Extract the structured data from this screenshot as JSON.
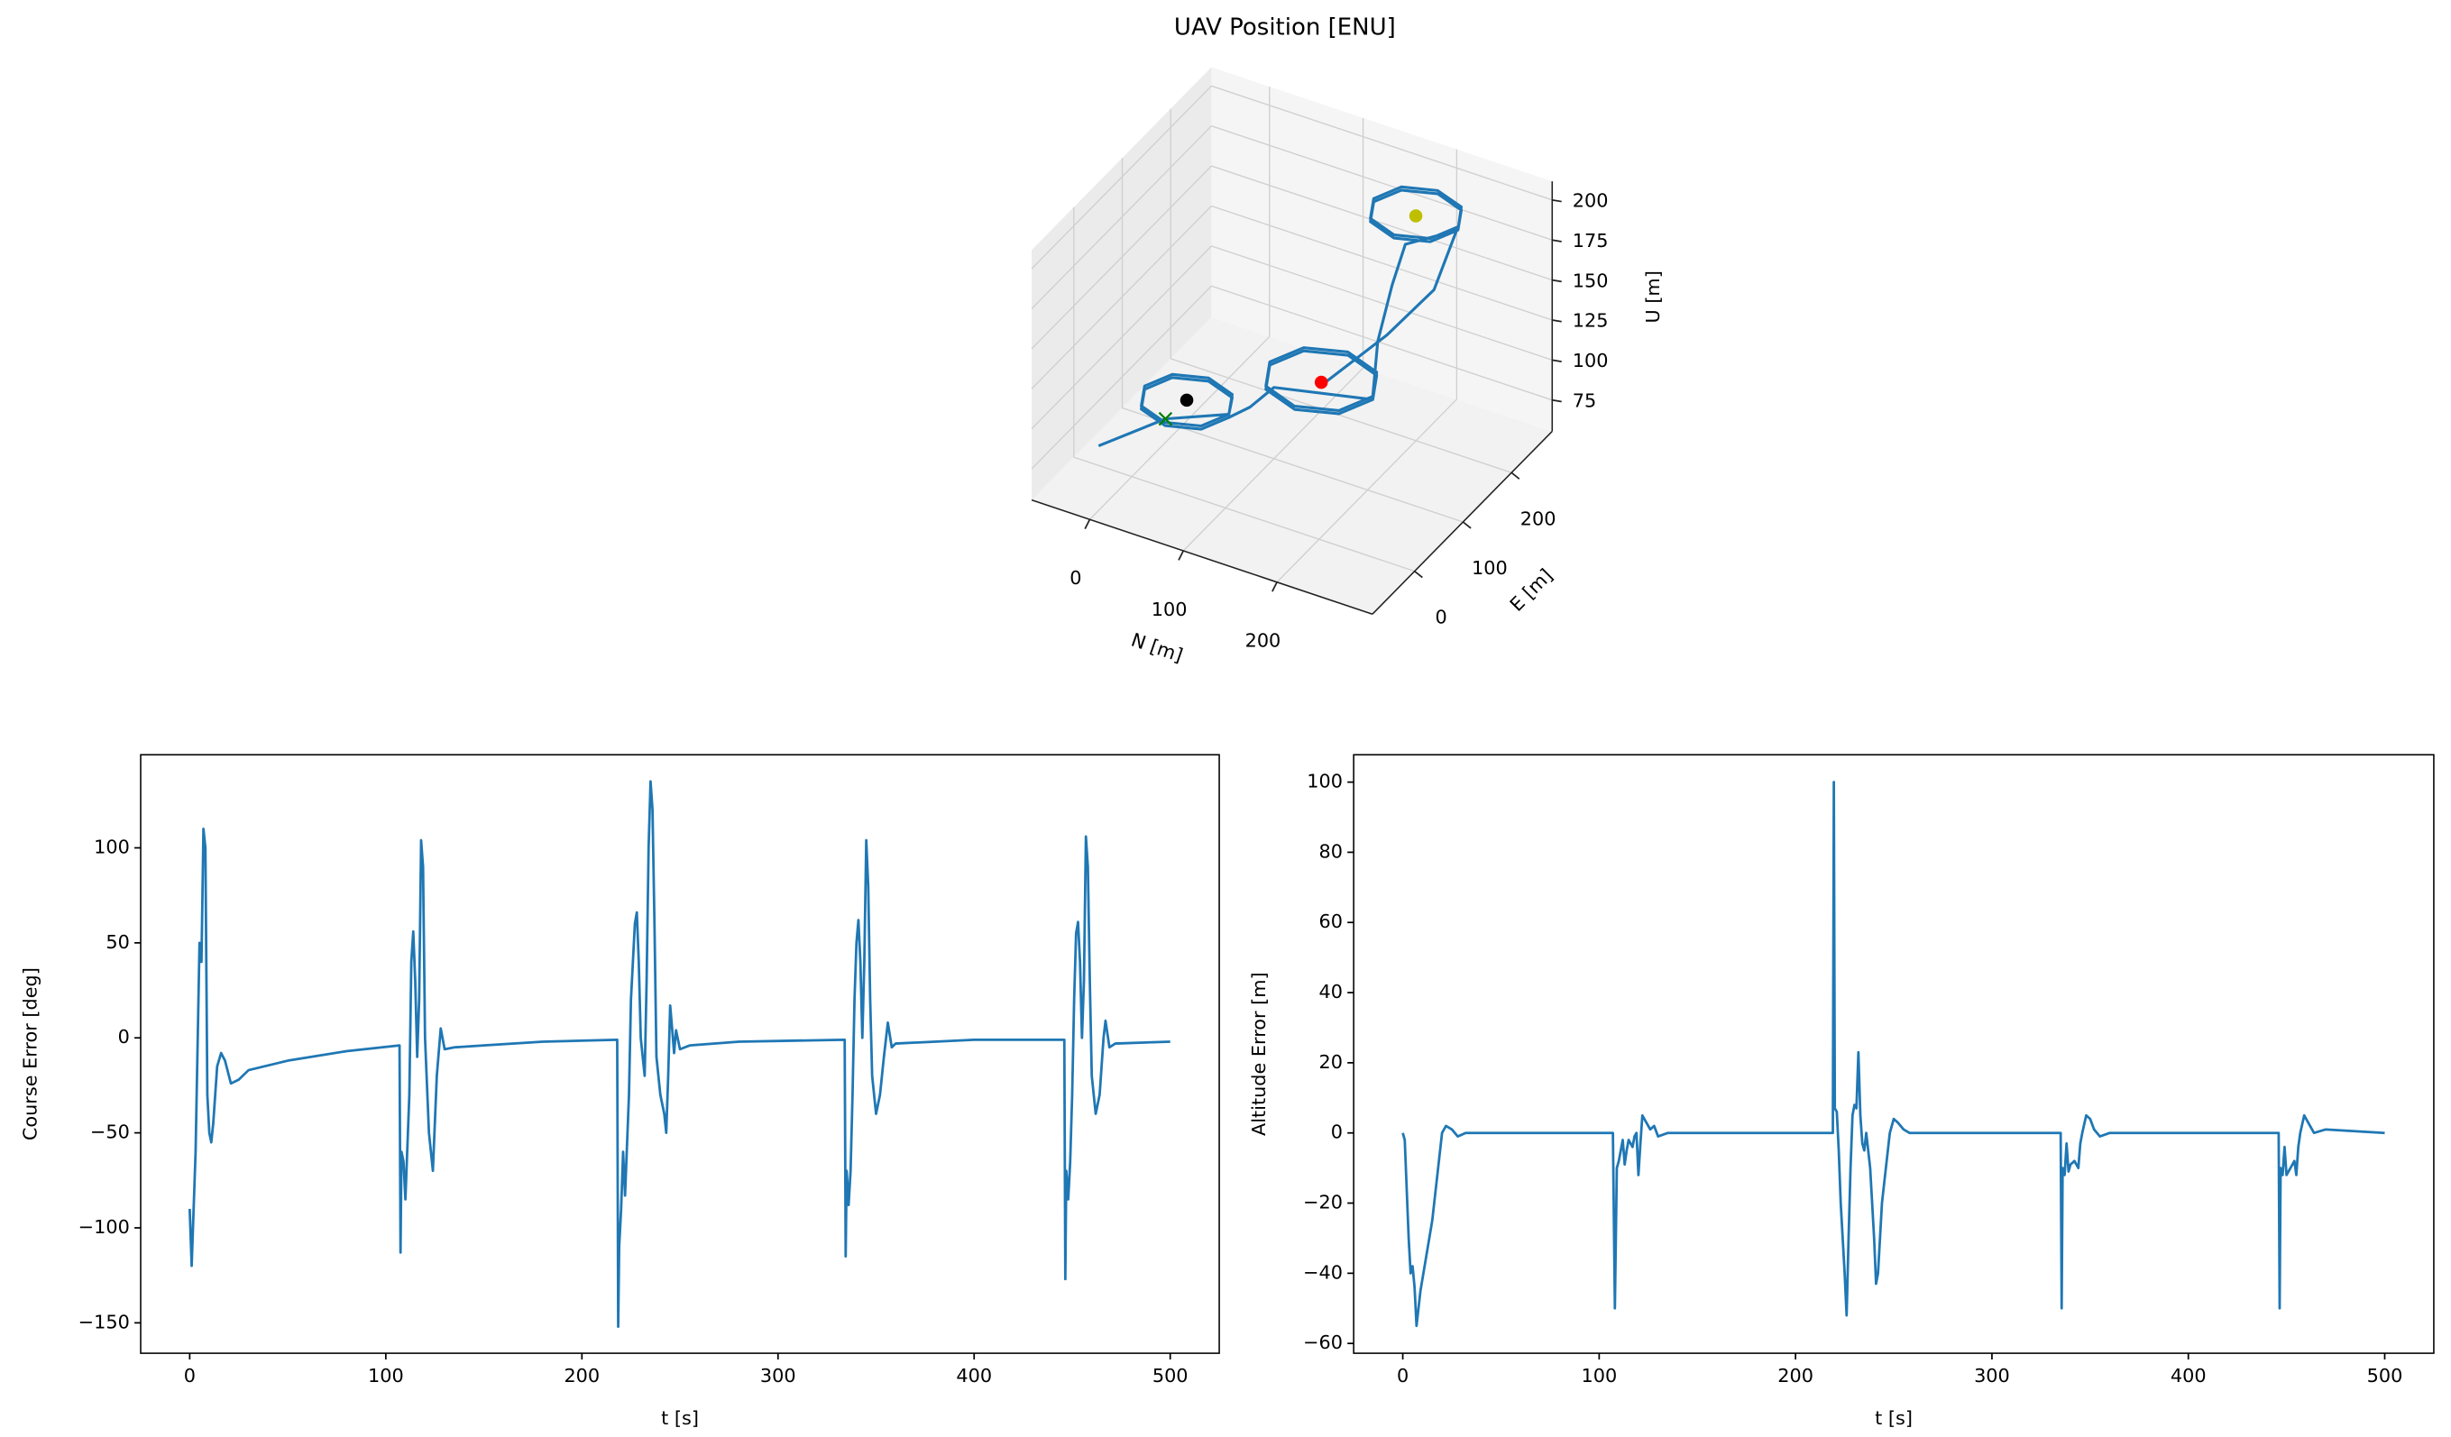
{
  "chart_data": [
    {
      "type": "line3d",
      "title": "UAV Position [ENU]",
      "xlabel": "N [m]",
      "ylabel": "E [m]",
      "zlabel": "U [m]",
      "xlim": [
        -62,
        302
      ],
      "ylim": [
        -87,
        284
      ],
      "zlim": [
        55.5,
        211.7
      ],
      "xticks": [
        0,
        100,
        200
      ],
      "yticks": [
        0,
        100,
        200
      ],
      "zticks": [
        75,
        100,
        125,
        150,
        175,
        200
      ],
      "series": [
        {
          "color": "#1f77b4",
          "x": [
            -20,
            25,
            85,
            72,
            40,
            8,
            -5,
            8,
            40,
            72,
            85,
            72,
            40,
            8,
            -5,
            8,
            40,
            72,
            85,
            90,
            100,
            189,
            173,
            134,
            95,
            79,
            95,
            134,
            173,
            189,
            173,
            134,
            95,
            79,
            95,
            134,
            173,
            189,
            185,
            190,
            200,
            250,
            237,
            205,
            173,
            160,
            173,
            205,
            237,
            250,
            237,
            205,
            173,
            160,
            173,
            205,
            237,
            250,
            240,
            200,
            150
          ],
          "y": [
            -30,
            21,
            36,
            68,
            81,
            68,
            36,
            4,
            -9,
            4,
            36,
            68,
            81,
            68,
            36,
            4,
            -9,
            4,
            36,
            70,
            100,
            132,
            171,
            187,
            171,
            132,
            93,
            77,
            93,
            132,
            171,
            187,
            171,
            132,
            93,
            77,
            93,
            132,
            150,
            170,
            178,
            190,
            222,
            235,
            222,
            190,
            158,
            145,
            158,
            190,
            222,
            235,
            222,
            190,
            158,
            145,
            158,
            190,
            160,
            140,
            110
          ],
          "z": [
            80,
            90,
            100,
            100,
            100,
            100,
            100,
            100,
            100,
            100,
            100,
            98,
            98,
            98,
            98,
            98,
            98,
            98,
            98,
            95,
            100,
            100,
            100,
            100,
            100,
            100,
            100,
            100,
            100,
            100,
            102,
            102,
            102,
            102,
            102,
            102,
            102,
            102,
            130,
            160,
            185,
            200,
            200,
            200,
            200,
            200,
            200,
            200,
            200,
            200,
            202,
            202,
            202,
            202,
            202,
            202,
            202,
            202,
            170,
            140,
            110
          ]
        }
      ],
      "markers": [
        {
          "marker": "x",
          "color": "#008000",
          "x": 25,
          "y": 21,
          "z": 90
        },
        {
          "marker": "o",
          "color": "#000000",
          "x": 40,
          "y": 36,
          "z": 100
        },
        {
          "marker": "o",
          "color": "#ff0000",
          "x": 134,
          "y": 132,
          "z": 100
        },
        {
          "marker": "o",
          "color": "#bfbf00",
          "x": 205,
          "y": 190,
          "z": 200
        }
      ]
    },
    {
      "type": "line",
      "xlabel": "t [s]",
      "ylabel": "Course Error [deg]",
      "xlim": [
        -25,
        525
      ],
      "ylim": [
        -166,
        149
      ],
      "xticks": [
        0,
        100,
        200,
        300,
        400,
        500
      ],
      "yticks": [
        {
          "value": -150,
          "label": "−150"
        },
        {
          "value": -100,
          "label": "−100"
        },
        {
          "value": -50,
          "label": "−50"
        },
        0,
        50,
        100
      ],
      "x": [
        0,
        1,
        3,
        5,
        6,
        7,
        8,
        9,
        10,
        11,
        12,
        14,
        16,
        18,
        21,
        25,
        30,
        50,
        80,
        107,
        107.5,
        108,
        109,
        110,
        112,
        113,
        114,
        115,
        116,
        117,
        118,
        119,
        120,
        122,
        124,
        126,
        128,
        130,
        135,
        150,
        180,
        218,
        218.5,
        219,
        220,
        221,
        222,
        224,
        225,
        227,
        228,
        229,
        230,
        232,
        233,
        234,
        235,
        236,
        237,
        238,
        240,
        242,
        243,
        244,
        245,
        246,
        247,
        248,
        250,
        255,
        280,
        334,
        334.5,
        335,
        336,
        337,
        338,
        339,
        340,
        341,
        342,
        343,
        344,
        345,
        346,
        347,
        348,
        350,
        352,
        354,
        356,
        358,
        360,
        400,
        446,
        446.5,
        447,
        448,
        449,
        450,
        451,
        452,
        453,
        454,
        455,
        456,
        457,
        458,
        459,
        460,
        462,
        464,
        466,
        467,
        469,
        472,
        500
      ],
      "series": [
        {
          "color": "#1f77b4",
          "values": [
            -90,
            -120,
            -60,
            50,
            40,
            110,
            100,
            -30,
            -50,
            -55,
            -45,
            -15,
            -8,
            -12,
            -24,
            -22,
            -17,
            -12,
            -7,
            -4,
            -113,
            -60,
            -65,
            -85,
            -30,
            40,
            56,
            30,
            -10,
            20,
            104,
            90,
            0,
            -50,
            -70,
            -20,
            5,
            -6,
            -5,
            -4,
            -2,
            -1,
            -152,
            -110,
            -90,
            -60,
            -83,
            -30,
            20,
            60,
            66,
            40,
            0,
            -20,
            30,
            100,
            135,
            120,
            60,
            -10,
            -30,
            -40,
            -50,
            -20,
            17,
            5,
            -8,
            4,
            -6,
            -4,
            -2,
            -1,
            -115,
            -70,
            -88,
            -70,
            -30,
            20,
            50,
            62,
            40,
            0,
            40,
            104,
            80,
            20,
            -20,
            -40,
            -30,
            -10,
            8,
            -5,
            -3,
            -1,
            -1,
            -127,
            -70,
            -85,
            -65,
            -30,
            20,
            55,
            61,
            40,
            0,
            30,
            106,
            90,
            30,
            -20,
            -40,
            -30,
            0,
            9,
            -5,
            -3,
            -2
          ]
        }
      ]
    },
    {
      "type": "line",
      "xlabel": "t [s]",
      "ylabel": "Altitude Error [m]",
      "xlim": [
        -25,
        525
      ],
      "ylim": [
        -62.8,
        107.8
      ],
      "xticks": [
        0,
        100,
        200,
        300,
        400,
        500
      ],
      "yticks": [
        {
          "value": -60,
          "label": "−60"
        },
        {
          "value": -40,
          "label": "−40"
        },
        {
          "value": -20,
          "label": "−20"
        },
        0,
        20,
        40,
        60,
        80,
        100
      ],
      "x": [
        0,
        1,
        3,
        4,
        5,
        6,
        7,
        9,
        12,
        15,
        18,
        20,
        22,
        25,
        28,
        32,
        107,
        108,
        109,
        110,
        111,
        112,
        113,
        114,
        115,
        117,
        118,
        119,
        120,
        121,
        122,
        124,
        126,
        128,
        130,
        135,
        219,
        219.5,
        220,
        221,
        222,
        223,
        225,
        226,
        227,
        228,
        229,
        230,
        231,
        232,
        233,
        234,
        235,
        236,
        238,
        240,
        241,
        242,
        244,
        246,
        248,
        250,
        252,
        255,
        258,
        335,
        335.5,
        336,
        337,
        338,
        339,
        340,
        342,
        344,
        345,
        346,
        348,
        350,
        352,
        355,
        360,
        446,
        446.5,
        447,
        448,
        449,
        450,
        452,
        454,
        455,
        456,
        457,
        459,
        461,
        464,
        470,
        500
      ],
      "series": [
        {
          "color": "#1f77b4",
          "values": [
            0,
            -2,
            -30,
            -40,
            -38,
            -44,
            -55,
            -45,
            -35,
            -25,
            -10,
            0,
            2,
            1,
            -1,
            0,
            0,
            -50,
            -10,
            -8,
            -5,
            -2,
            -9,
            -5,
            -2,
            -4,
            -1,
            0,
            -12,
            -3,
            5,
            3,
            1,
            2,
            -1,
            0,
            0,
            100,
            7,
            6,
            -5,
            -20,
            -40,
            -52,
            -30,
            -10,
            5,
            8,
            7,
            23,
            5,
            -3,
            -5,
            0,
            -10,
            -30,
            -43,
            -40,
            -20,
            -10,
            0,
            4,
            3,
            1,
            0,
            0,
            -50,
            -10,
            -12,
            -3,
            -11,
            -9,
            -8,
            -10,
            -3,
            0,
            5,
            4,
            1,
            -1,
            0,
            0,
            -50,
            -10,
            -12,
            -4,
            -12,
            -10,
            -8,
            -12,
            -4,
            0,
            5,
            3,
            0,
            1,
            0
          ]
        }
      ]
    }
  ]
}
